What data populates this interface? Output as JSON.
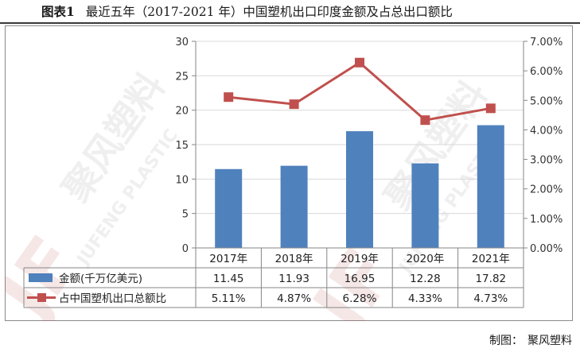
{
  "figure": {
    "number": "图表1",
    "title": "最近五年（2017-2021 年）中国塑机出口印度金额及占总出口额比"
  },
  "watermark": {
    "mark": "JF",
    "cn": "聚风塑料",
    "en": "JUFENG PLASTIC"
  },
  "credit": {
    "label": "制图：",
    "value": "聚风塑料"
  },
  "colors": {
    "bar": "#4f81bd",
    "line": "#c0504d",
    "grid": "#d9d9d9",
    "axis": "#868686"
  },
  "chart_data": {
    "type": "bar",
    "categories": [
      "2017年",
      "2018年",
      "2019年",
      "2020年",
      "2021年"
    ],
    "series": [
      {
        "name": "金额(千万亿美元)",
        "type": "bar",
        "axis": "left",
        "values": [
          11.45,
          11.93,
          16.95,
          12.28,
          17.82
        ],
        "labels": [
          "11.45",
          "11.93",
          "16.95",
          "12.28",
          "17.82"
        ]
      },
      {
        "name": "占中国塑机出口总额比",
        "type": "line",
        "axis": "right",
        "values": [
          5.11,
          4.87,
          6.28,
          4.33,
          4.73
        ],
        "labels": [
          "5.11%",
          "4.87%",
          "6.28%",
          "4.33%",
          "4.73%"
        ]
      }
    ],
    "y_left": {
      "min": 0,
      "max": 30,
      "step": 5,
      "ticks": [
        "0",
        "5",
        "10",
        "15",
        "20",
        "25",
        "30"
      ]
    },
    "y_right": {
      "min": 0,
      "max": 7,
      "step": 1,
      "ticks": [
        "0.00%",
        "1.00%",
        "2.00%",
        "3.00%",
        "4.00%",
        "5.00%",
        "6.00%",
        "7.00%"
      ]
    },
    "grid": true,
    "legend": "data-table"
  }
}
